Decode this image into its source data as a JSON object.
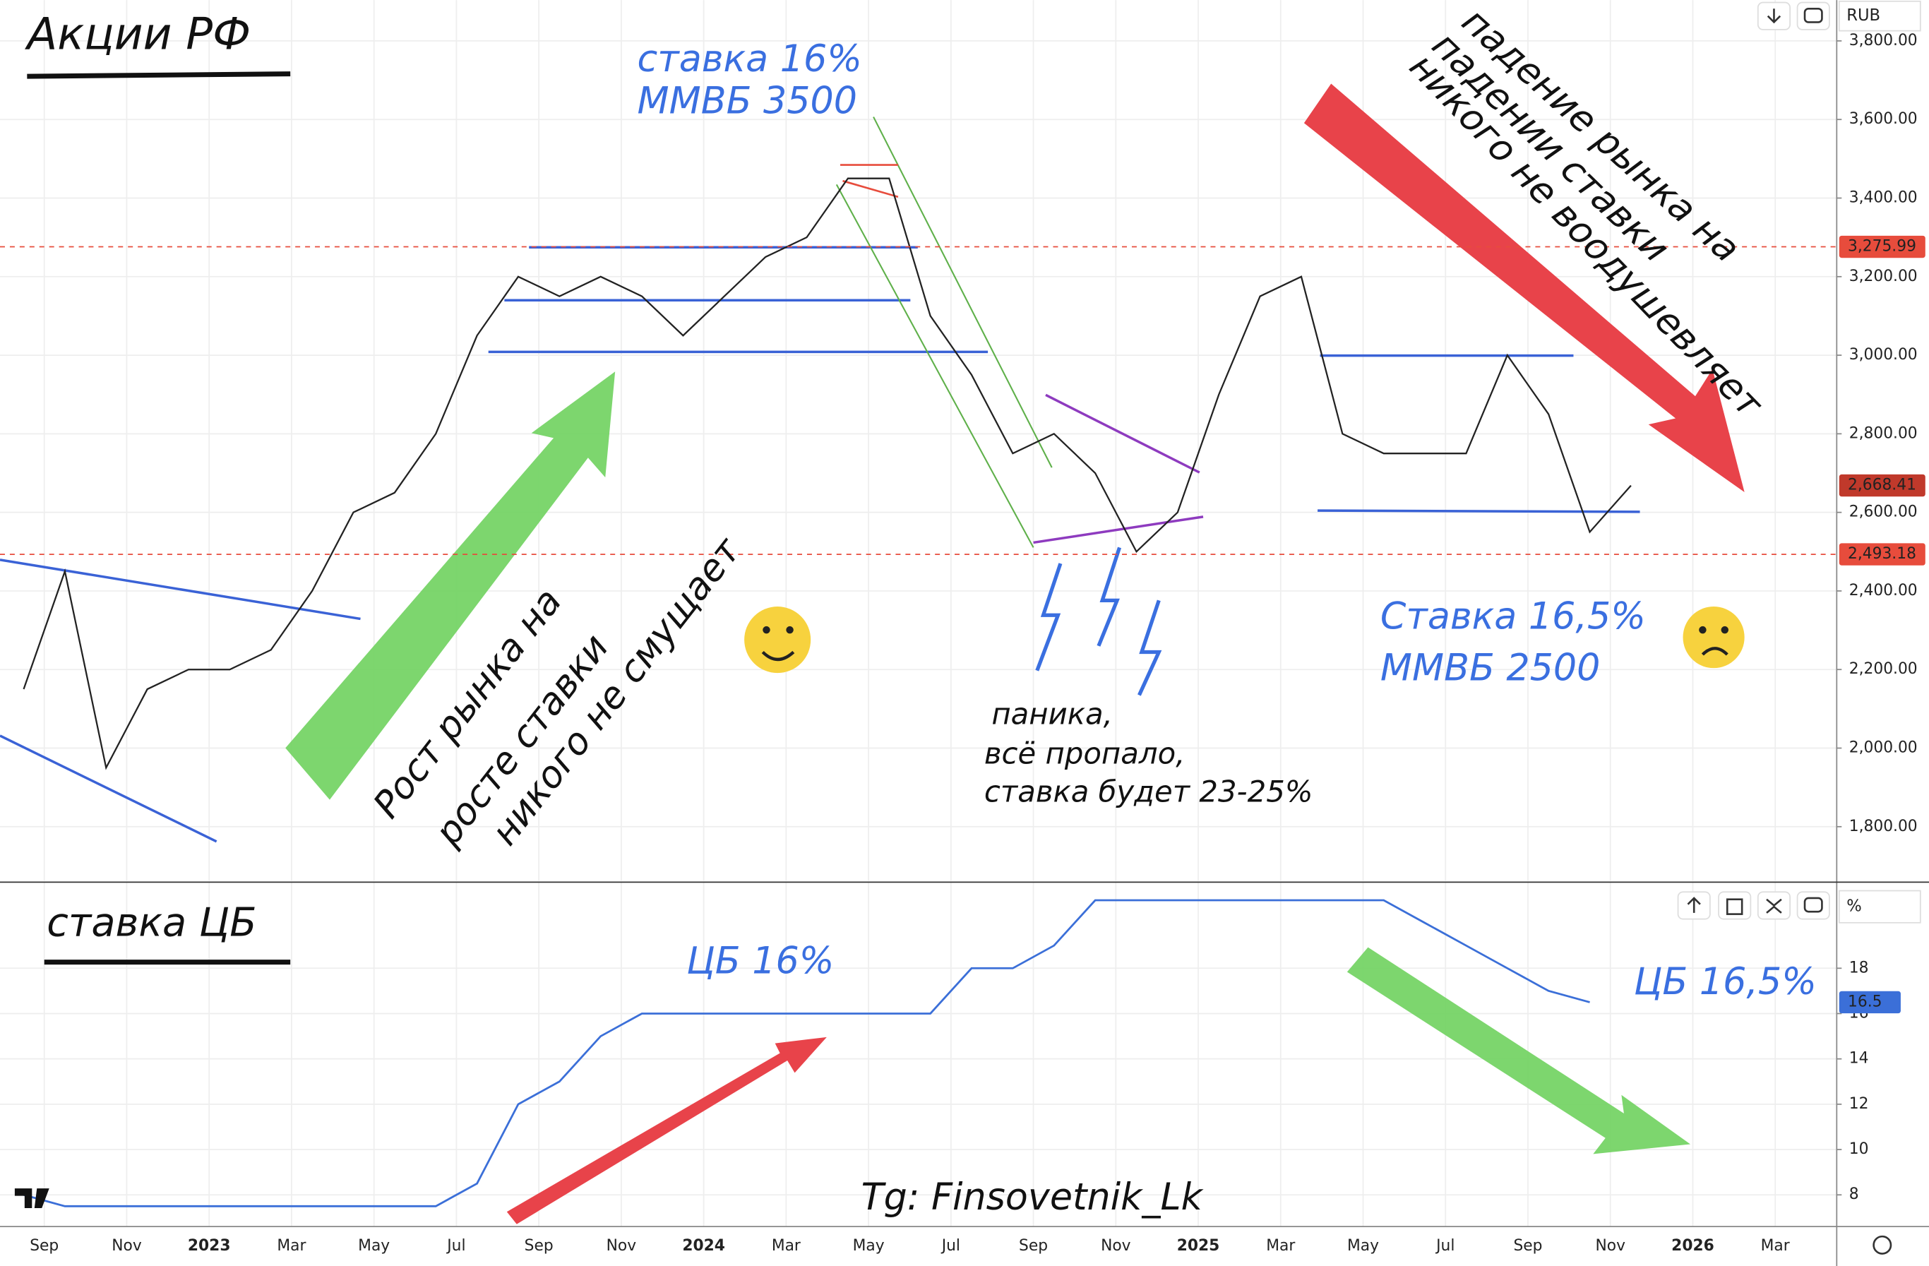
{
  "chart_data": [
    {
      "type": "line",
      "title": "Акции РФ",
      "x": [
        "2022-08",
        "2022-09",
        "2022-10",
        "2022-11",
        "2022-12",
        "2023-01",
        "2023-02",
        "2023-03",
        "2023-04",
        "2023-05",
        "2023-06",
        "2023-07",
        "2023-08",
        "2023-09",
        "2023-10",
        "2023-11",
        "2023-12",
        "2024-01",
        "2024-02",
        "2024-03",
        "2024-04",
        "2024-05",
        "2024-06",
        "2024-07",
        "2024-08",
        "2024-09",
        "2024-10",
        "2024-11",
        "2024-12",
        "2025-01",
        "2025-02",
        "2025-03",
        "2025-04",
        "2025-05",
        "2025-06",
        "2025-07",
        "2025-08",
        "2025-09",
        "2025-10",
        "2025-11"
      ],
      "series": [
        {
          "color": "#222222",
          "values": [
            2150,
            2450,
            1950,
            2150,
            2200,
            2200,
            2250,
            2400,
            2600,
            2650,
            2800,
            3050,
            3200,
            3150,
            3200,
            3150,
            3050,
            3150,
            3250,
            3300,
            3450,
            3450,
            3100,
            2950,
            2750,
            2800,
            2700,
            2500,
            2600,
            2900,
            3150,
            3200,
            2800,
            2750,
            2750,
            2750,
            3000,
            2850,
            2550,
            2668.41
          ]
        }
      ],
      "ylim": [
        1662,
        3904
      ],
      "yticks": [
        {
          "value": 1800,
          "label": "1,800.00"
        },
        {
          "value": 2000,
          "label": "2,000.00"
        },
        {
          "value": 2200,
          "label": "2,200.00"
        },
        {
          "value": 2400,
          "label": "2,400.00"
        },
        {
          "value": 2600,
          "label": "2,600.00"
        },
        {
          "value": 2800,
          "label": "2,800.00"
        },
        {
          "value": 3000,
          "label": "3,000.00"
        },
        {
          "value": 3200,
          "label": "3,200.00"
        },
        {
          "value": 3400,
          "label": "3,400.00"
        },
        {
          "value": 3600,
          "label": "3,600.00"
        },
        {
          "value": 3800,
          "label": "3,800.00"
        }
      ],
      "grid": true,
      "price_levels": [
        {
          "value": 3275.99,
          "label": "3,275.99",
          "dashed": true,
          "color": "#e74c3c"
        },
        {
          "value": 2668.41,
          "label": "2,668.41",
          "dashed": false,
          "color": "#c0392b"
        },
        {
          "value": 2493.18,
          "label": "2,493.18",
          "dashed": true,
          "color": "#e74c3c"
        }
      ],
      "annotations": [
        "ставка 16%",
        "ММВБ 3500",
        "Рост рынка на",
        "росте ставки",
        "никого не смущает",
        "падение рынка на",
        "падении ставки",
        "никого не воодушевляет",
        "паника,",
        "всё пропало,",
        "ставка будет 23-25%",
        "Ставка 16,5%",
        "ММВБ 2500"
      ]
    },
    {
      "type": "line",
      "title": "ставка ЦБ",
      "x": [
        "2022-08",
        "2022-09",
        "2022-10",
        "2022-11",
        "2022-12",
        "2023-01",
        "2023-02",
        "2023-03",
        "2023-04",
        "2023-05",
        "2023-06",
        "2023-07",
        "2023-08",
        "2023-09",
        "2023-10",
        "2023-11",
        "2023-12",
        "2024-01",
        "2024-02",
        "2024-03",
        "2024-04",
        "2024-05",
        "2024-06",
        "2024-07",
        "2024-08",
        "2024-09",
        "2024-10",
        "2024-11",
        "2024-12",
        "2025-01",
        "2025-02",
        "2025-03",
        "2025-04",
        "2025-05",
        "2025-06",
        "2025-07",
        "2025-08",
        "2025-09",
        "2025-10"
      ],
      "series": [
        {
          "color": "#3b6fd8",
          "values": [
            8,
            7.5,
            7.5,
            7.5,
            7.5,
            7.5,
            7.5,
            7.5,
            7.5,
            7.5,
            7.5,
            8.5,
            12,
            13,
            15,
            16,
            16,
            16,
            16,
            16,
            16,
            16,
            16,
            18,
            18,
            19,
            21,
            21,
            21,
            21,
            21,
            21,
            21,
            21,
            20,
            19,
            18,
            17,
            16.5
          ]
        }
      ],
      "last_value": 16.5,
      "ylim": [
        6.6,
        21.8
      ],
      "yticks": [
        8,
        10,
        12,
        14,
        16,
        18
      ],
      "grid": true,
      "xticks": [
        {
          "value": "2022-09",
          "label": "Sep"
        },
        {
          "value": "2022-11",
          "label": "Nov"
        },
        {
          "value": "2023-01",
          "label": "2023"
        },
        {
          "value": "2023-03",
          "label": "Mar"
        },
        {
          "value": "2023-05",
          "label": "May"
        },
        {
          "value": "2023-07",
          "label": "Jul"
        },
        {
          "value": "2023-09",
          "label": "Sep"
        },
        {
          "value": "2023-11",
          "label": "Nov"
        },
        {
          "value": "2024-01",
          "label": "2024"
        },
        {
          "value": "2024-03",
          "label": "Mar"
        },
        {
          "value": "2024-05",
          "label": "May"
        },
        {
          "value": "2024-07",
          "label": "Jul"
        },
        {
          "value": "2024-09",
          "label": "Sep"
        },
        {
          "value": "2024-11",
          "label": "Nov"
        },
        {
          "value": "2025-01",
          "label": "2025"
        },
        {
          "value": "2025-03",
          "label": "Mar"
        },
        {
          "value": "2025-05",
          "label": "May"
        },
        {
          "value": "2025-07",
          "label": "Jul"
        },
        {
          "value": "2025-09",
          "label": "Sep"
        },
        {
          "value": "2025-11",
          "label": "Nov"
        },
        {
          "value": "2026-01",
          "label": "2026"
        },
        {
          "value": "2026-03",
          "label": "Mar"
        }
      ],
      "annotations": [
        "ЦБ 16%",
        "ЦБ 16,5%",
        "Tg: Finsovetnik_Lk"
      ]
    }
  ],
  "ui": {
    "currency": "RUB",
    "unit": "%"
  }
}
